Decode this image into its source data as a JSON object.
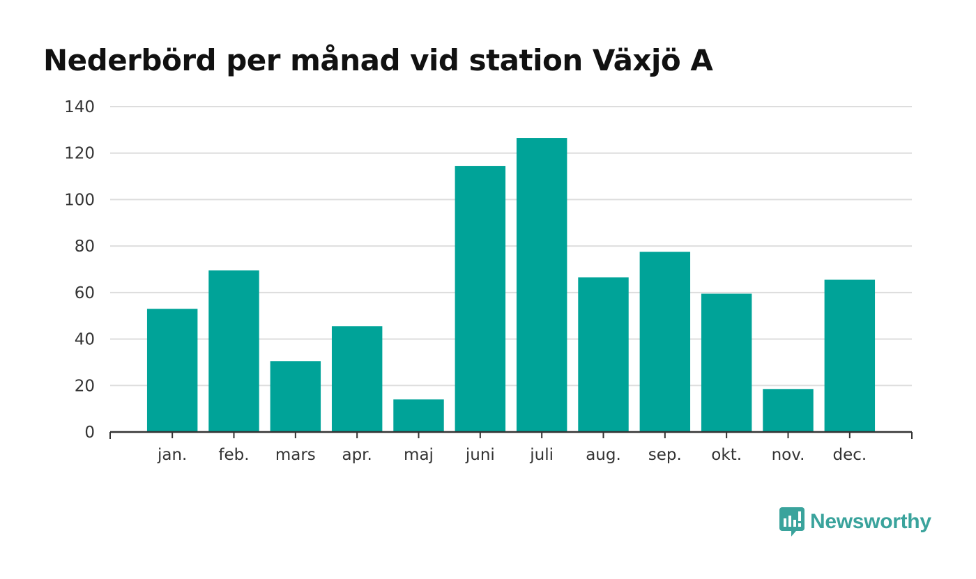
{
  "title": "Nederbörd per månad vid station Växjö A",
  "brand": {
    "name": "Newsworthy",
    "icon": "newsworthy-logo-icon",
    "color": "#3aa39c"
  },
  "chart_data": {
    "type": "bar",
    "title": "Nederbörd per månad vid station Växjö A",
    "xlabel": "",
    "ylabel": "",
    "categories": [
      "jan.",
      "feb.",
      "mars",
      "apr.",
      "maj",
      "juni",
      "juli",
      "aug.",
      "sep.",
      "okt.",
      "nov.",
      "dec."
    ],
    "values": [
      53,
      69.5,
      30.5,
      45.5,
      14,
      114.5,
      126.5,
      66.5,
      77.5,
      59.5,
      18.5,
      65.5
    ],
    "ylim": [
      0,
      140
    ],
    "yticks": [
      0,
      20,
      40,
      60,
      80,
      100,
      120,
      140
    ],
    "yticklabels": [
      "0",
      "20",
      "40",
      "60",
      "80",
      "100",
      "120",
      "140"
    ],
    "grid": true,
    "bar_color": "#00a398",
    "gridline_color": "#dddddd",
    "axis_color": "#333333",
    "legend": "none"
  }
}
